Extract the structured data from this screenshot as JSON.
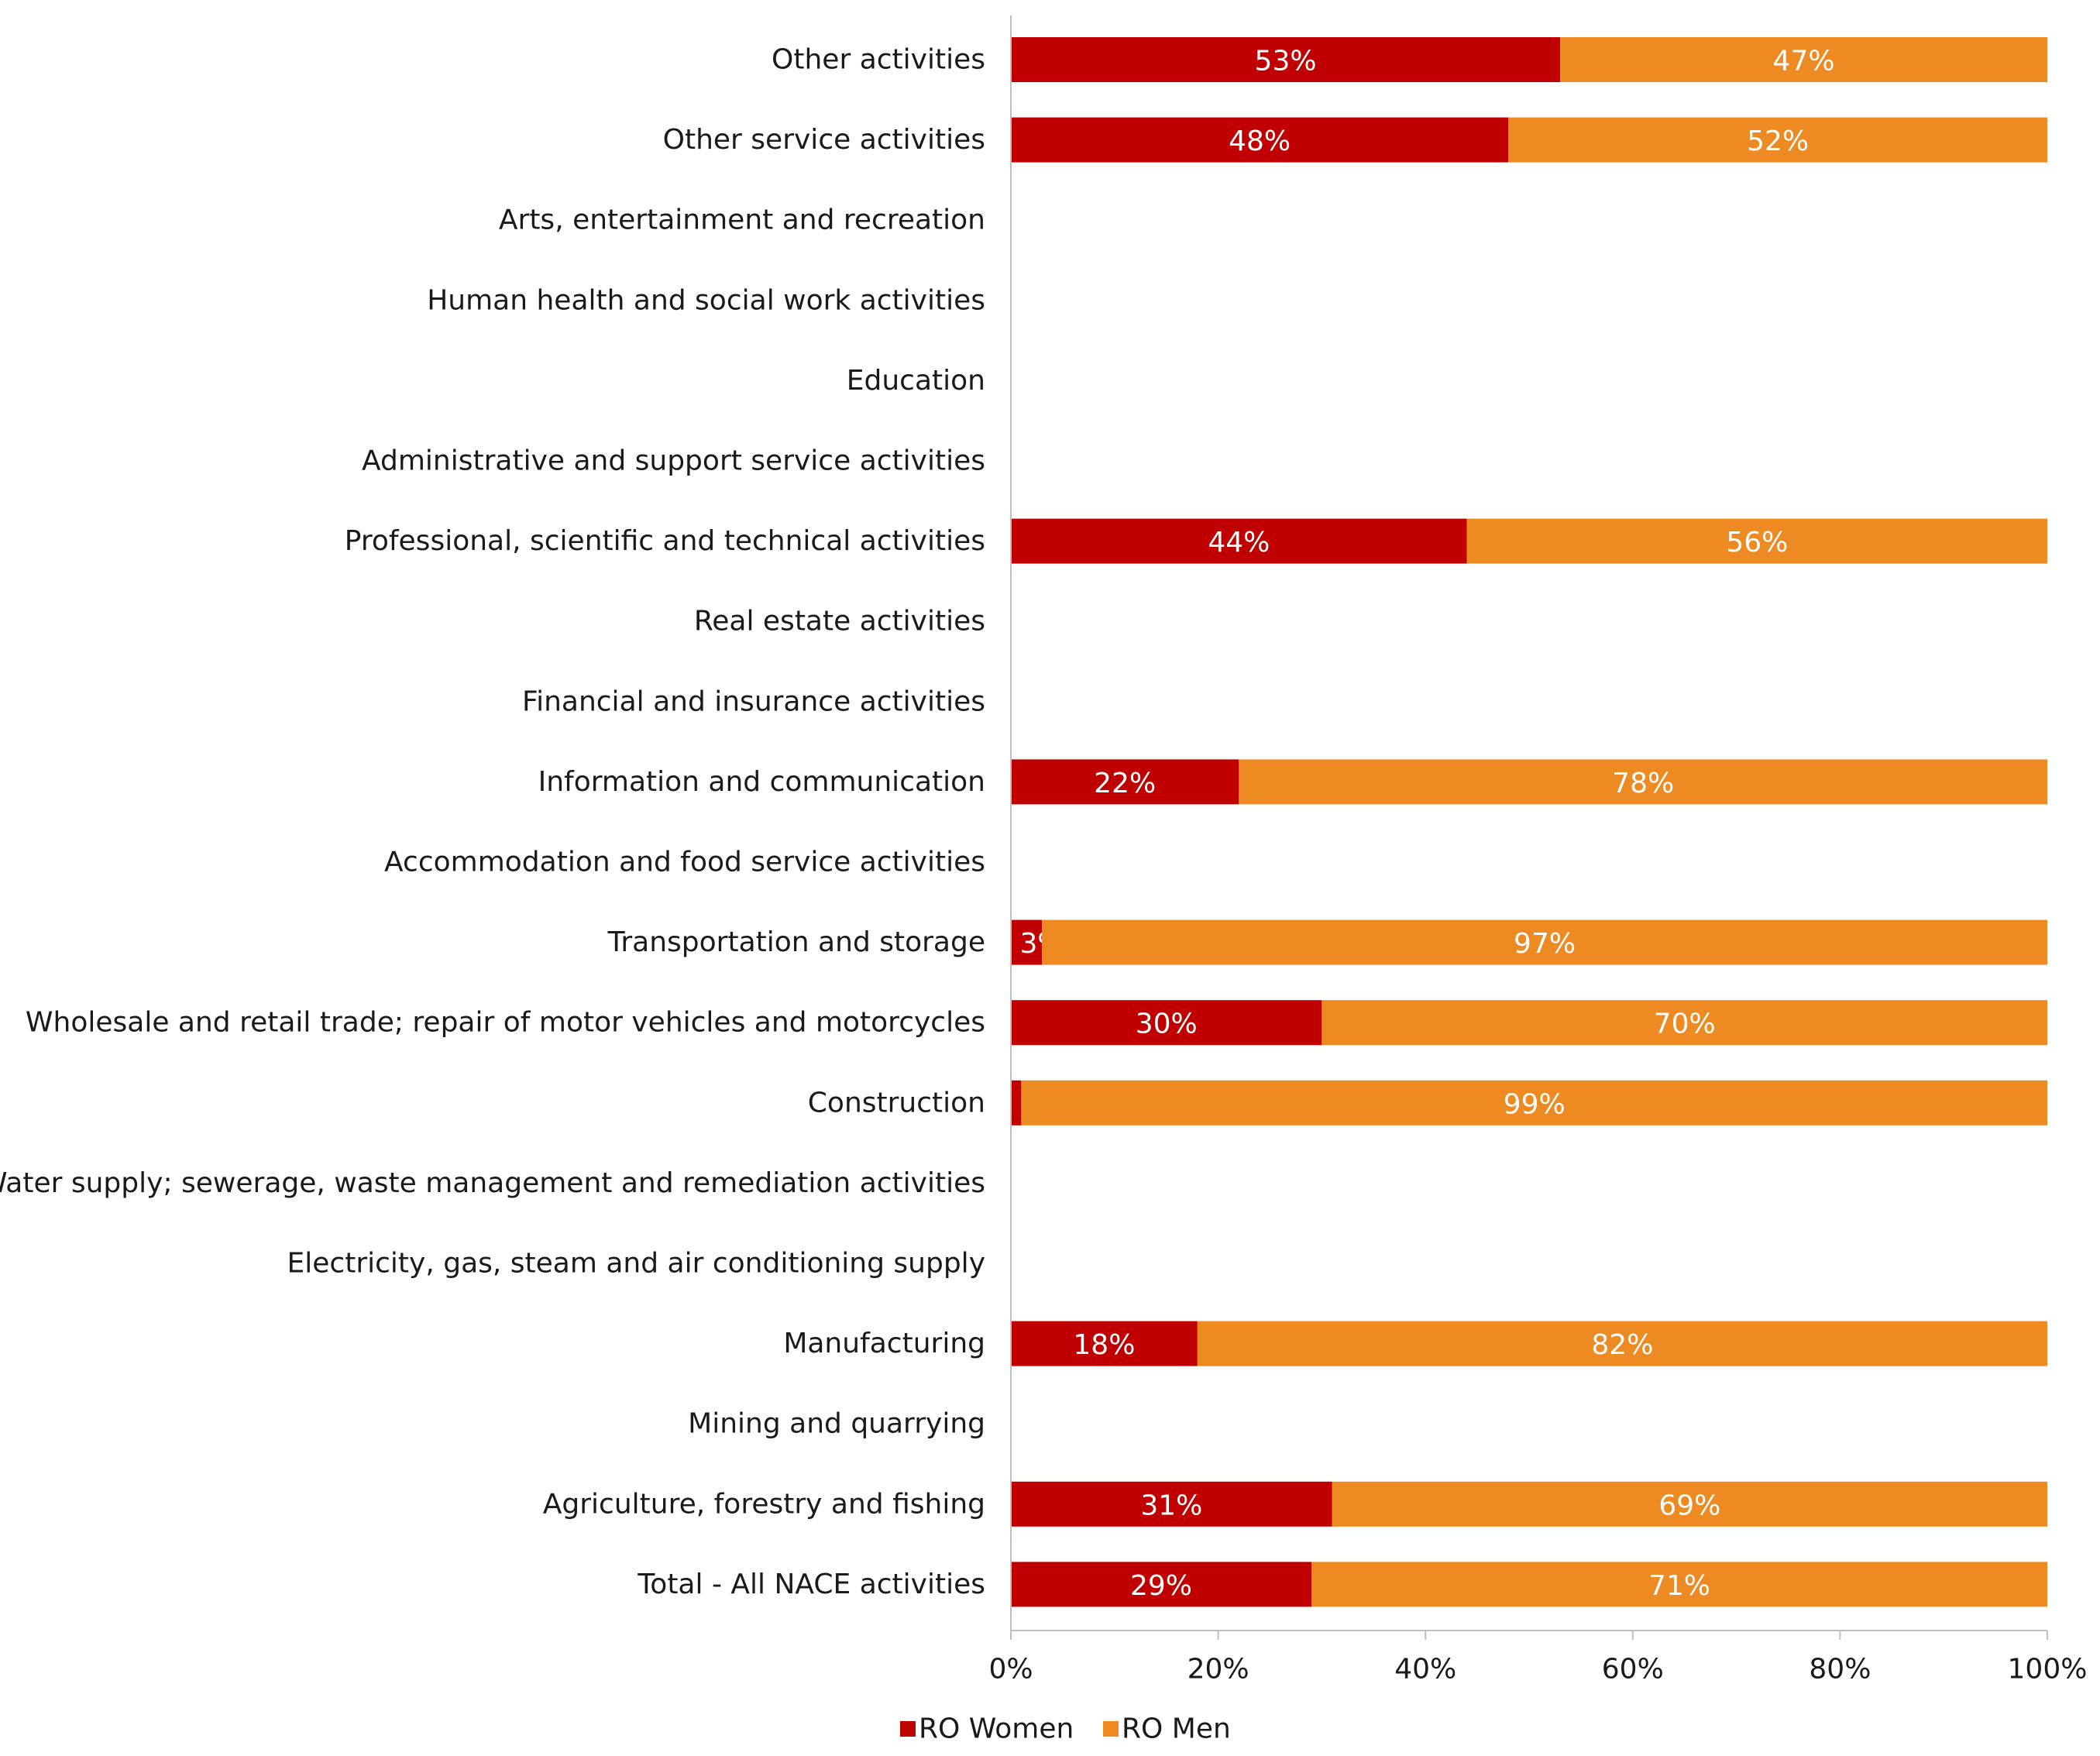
{
  "chart_data": {
    "type": "bar",
    "orientation": "horizontal",
    "stacked": "percent",
    "categories": [
      "Other activities",
      "Other service activities",
      "Arts, entertainment and recreation",
      "Human health and social work activities",
      "Education",
      "Administrative and support service activities",
      "Professional, scientific and technical activities",
      "Real estate activities",
      "Financial and insurance activities",
      "Information and communication",
      "Accommodation and food service activities",
      "Transportation and storage",
      "Wholesale and retail trade; repair of motor vehicles and motorcycles",
      "Construction",
      "Water supply; sewerage, waste management and remediation activities",
      "Electricity, gas, steam and air conditioning supply",
      "Manufacturing",
      "Mining and quarrying",
      "Agriculture, forestry and fishing",
      "Total - All NACE activities"
    ],
    "series": [
      {
        "name": "RO Women",
        "color": "#c00000",
        "values": [
          53,
          48,
          null,
          null,
          null,
          null,
          44,
          null,
          null,
          22,
          null,
          3,
          30,
          1,
          null,
          null,
          18,
          null,
          31,
          29
        ],
        "labels": [
          "53%",
          "48%",
          "",
          "",
          "",
          "",
          "44%",
          "",
          "",
          "22%",
          "",
          "3%",
          "30%",
          "1%",
          "",
          "",
          "18%",
          "",
          "31%",
          "29%"
        ]
      },
      {
        "name": "RO Men",
        "color": "#ed8a22",
        "values": [
          47,
          52,
          null,
          null,
          null,
          null,
          56,
          null,
          null,
          78,
          null,
          97,
          70,
          99,
          null,
          null,
          82,
          null,
          69,
          71
        ],
        "labels": [
          "47%",
          "52%",
          "",
          "",
          "",
          "",
          "56%",
          "",
          "",
          "78%",
          "",
          "97%",
          "70%",
          "99%",
          "",
          "",
          "82%",
          "",
          "69%",
          "71%"
        ]
      }
    ],
    "xlim": [
      0,
      100
    ],
    "xticks": [
      "0%",
      "20%",
      "40%",
      "60%",
      "80%",
      "100%"
    ],
    "xtick_values": [
      0,
      20,
      40,
      60,
      80,
      100
    ],
    "legend": {
      "position": "bottom",
      "entries": [
        "RO Women",
        "RO Men"
      ]
    },
    "grid": false
  }
}
